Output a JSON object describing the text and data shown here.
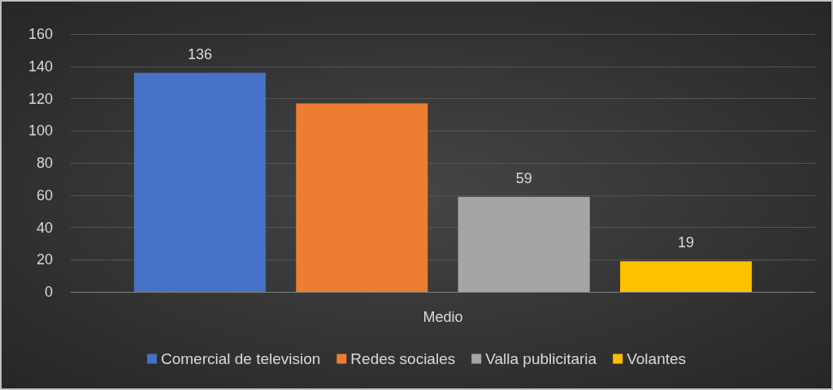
{
  "chart_data": {
    "type": "bar",
    "categories": [
      "Medio"
    ],
    "series": [
      {
        "name": "Comercial de television",
        "color": "#4472c4",
        "values": [
          136
        ],
        "value_labels": [
          "136"
        ]
      },
      {
        "name": "Redes sociales",
        "color": "#ed7d31",
        "values": [
          117
        ],
        "value_labels": [
          null
        ]
      },
      {
        "name": "Valla publicitaria",
        "color": "#a5a5a5",
        "values": [
          59
        ],
        "value_labels": [
          "59"
        ]
      },
      {
        "name": "Volantes",
        "color": "#ffc000",
        "values": [
          19
        ],
        "value_labels": [
          "19"
        ]
      }
    ],
    "ylim": [
      0,
      160
    ],
    "yticks": [
      0,
      20,
      40,
      60,
      80,
      100,
      120,
      140,
      160
    ],
    "grid": "y",
    "legend": "bottom"
  }
}
